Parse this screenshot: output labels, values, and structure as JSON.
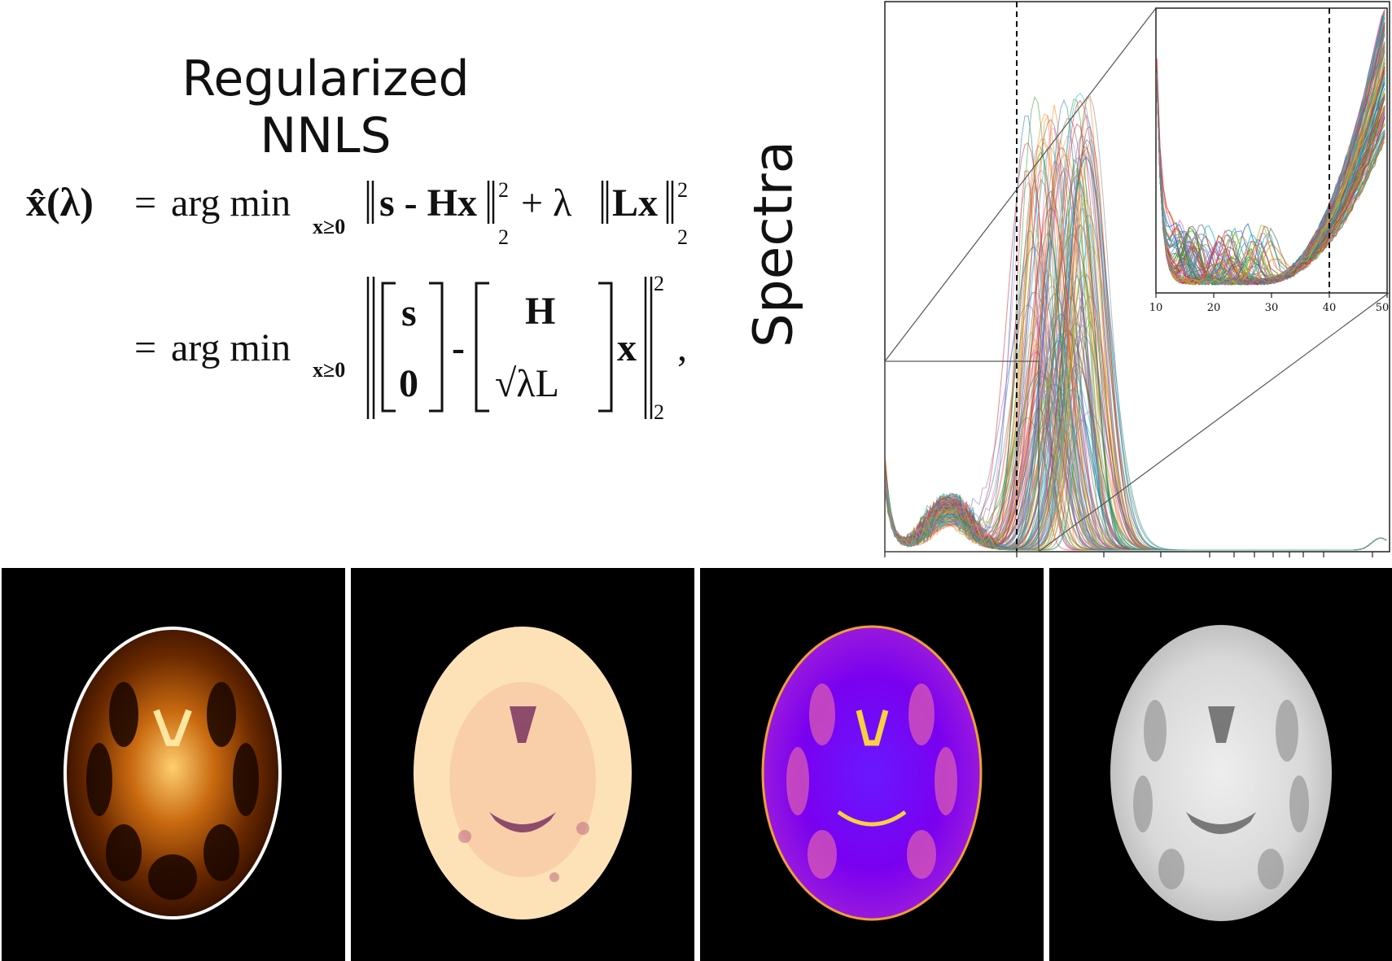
{
  "title": "Regularized NNLS",
  "equation": {
    "line1_lhs": "x̂(λ)",
    "eq_sign": "=",
    "argmin": "arg min",
    "subscript": "x≥0",
    "line1_rhs_a": "s - Hx",
    "norm_power": "2",
    "norm_sub": "2",
    "plus": "+ λ",
    "line1_rhs_b": "Lx",
    "mat1_top": "s",
    "mat1_bottom": "0",
    "minus": "-",
    "mat2_top": "H",
    "mat2_bottom": "√λL",
    "x_after": "x",
    "comma": ","
  },
  "spectra_label": "Spectra",
  "colors": {
    "trace_palette": [
      "#1f77b4",
      "#ff7f0e",
      "#2ca02c",
      "#d62728",
      "#9467bd",
      "#8c564b",
      "#e377c2",
      "#7f7f7f",
      "#bcbd22",
      "#17becf"
    ]
  },
  "chart_data": {
    "type": "line",
    "main": {
      "x_scale": "log",
      "dashed_vertical_line_at_fraction": "left of main peak",
      "series_count": "many overlapping spectra",
      "peak_description": "single dominant peak"
    },
    "inset": {
      "xticks": [
        "10",
        "20",
        "30",
        "40",
        "50"
      ],
      "xlim": [
        10,
        50
      ],
      "dashed_vertical_line_x": 40
    }
  },
  "images": [
    {
      "name": "brain-map-afmhot",
      "colormap": "afmhot"
    },
    {
      "name": "brain-map-magma-light",
      "colormap": "magma"
    },
    {
      "name": "brain-map-plasma",
      "colormap": "plasma"
    },
    {
      "name": "brain-map-gray",
      "colormap": "gray"
    }
  ]
}
